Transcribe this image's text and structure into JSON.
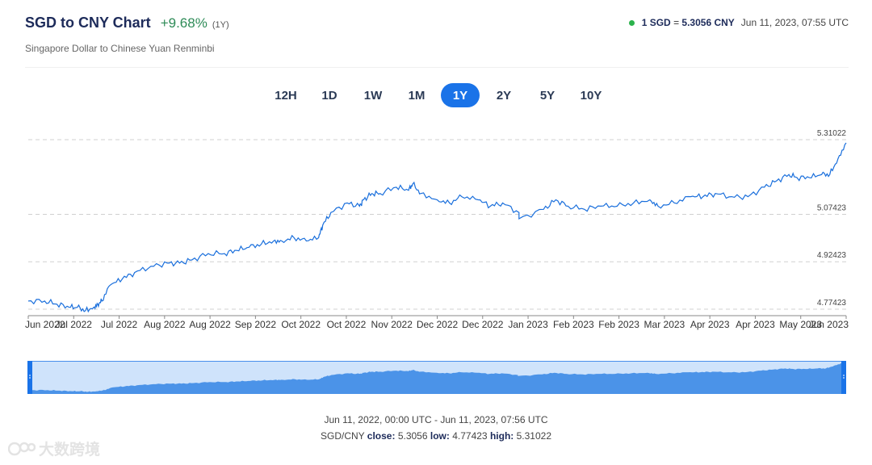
{
  "header": {
    "title": "SGD to CNY Chart",
    "change": "+9.68%",
    "change_period": "(1Y)",
    "subtitle": "Singapore Dollar to Chinese Yuan Renminbi"
  },
  "rate": {
    "base": "1 SGD",
    "eq": "=",
    "value": "5.3056 CNY",
    "timestamp": "Jun 11, 2023, 07:55 UTC"
  },
  "periods": [
    "12H",
    "1D",
    "1W",
    "1M",
    "1Y",
    "2Y",
    "5Y",
    "10Y"
  ],
  "active_period": "1Y",
  "chart_data": {
    "type": "line",
    "ylim": [
      4.77423,
      5.31022
    ],
    "y_ticks": [
      "5.31022",
      "5.07423",
      "4.92423",
      "4.77423"
    ],
    "x_tick_labels": [
      "Jun 2022",
      "Jul 2022",
      "Jul 2022",
      "Aug 2022",
      "Aug 2022",
      "Sep 2022",
      "Oct 2022",
      "Oct 2022",
      "Nov 2022",
      "Dec 2022",
      "Dec 2022",
      "Jan 2023",
      "Feb 2023",
      "Feb 2023",
      "Mar 2023",
      "Apr 2023",
      "Apr 2023",
      "May 2023",
      "Jun 2023"
    ],
    "grid": true,
    "colors": {
      "line": "#1a6fdc",
      "navigator_fill": "#4b93e8",
      "navigator_bg": "#cfe3fb"
    },
    "series": [
      {
        "x": [
          0,
          0.02,
          0.035,
          0.05,
          0.06,
          0.07,
          0.08,
          0.085,
          0.09,
          0.1,
          0.115,
          0.13,
          0.15,
          0.17,
          0.185,
          0.2,
          0.22,
          0.24,
          0.255,
          0.27,
          0.285,
          0.3,
          0.31,
          0.325,
          0.34,
          0.355,
          0.36,
          0.37,
          0.39,
          0.405,
          0.41,
          0.42,
          0.43,
          0.45,
          0.465,
          0.47,
          0.48,
          0.5,
          0.515,
          0.53,
          0.55,
          0.565,
          0.58,
          0.6,
          0.6,
          0.63,
          0.645,
          0.66,
          0.68,
          0.7,
          0.72,
          0.74,
          0.76,
          0.77,
          0.79,
          0.81,
          0.825,
          0.84,
          0.86,
          0.88,
          0.9,
          0.915,
          0.93,
          0.94,
          0.955,
          0.97,
          0.98,
          0.99,
          1.0
        ],
        "y": [
          4.8,
          4.8,
          4.79,
          4.78,
          4.78,
          4.77,
          4.78,
          4.79,
          4.8,
          4.85,
          4.87,
          4.89,
          4.91,
          4.92,
          4.92,
          4.93,
          4.95,
          4.95,
          4.96,
          4.97,
          4.98,
          4.99,
          4.99,
          5.0,
          4.99,
          5.0,
          5.04,
          5.08,
          5.11,
          5.1,
          5.12,
          5.14,
          5.14,
          5.16,
          5.15,
          5.17,
          5.14,
          5.12,
          5.11,
          5.13,
          5.12,
          5.1,
          5.11,
          5.08,
          5.06,
          5.09,
          5.12,
          5.1,
          5.09,
          5.1,
          5.1,
          5.11,
          5.12,
          5.1,
          5.11,
          5.13,
          5.13,
          5.14,
          5.13,
          5.13,
          5.16,
          5.18,
          5.2,
          5.19,
          5.19,
          5.2,
          5.2,
          5.25,
          5.3
        ]
      }
    ]
  },
  "footer": {
    "range": "Jun 11, 2022, 00:00 UTC - Jun 11, 2023, 07:56 UTC",
    "pair": "SGD/CNY",
    "close_label": "close:",
    "close": "5.3056",
    "low_label": "low:",
    "low": "4.77423",
    "high_label": "high:",
    "high": "5.31022"
  },
  "watermark": "大数跨境"
}
